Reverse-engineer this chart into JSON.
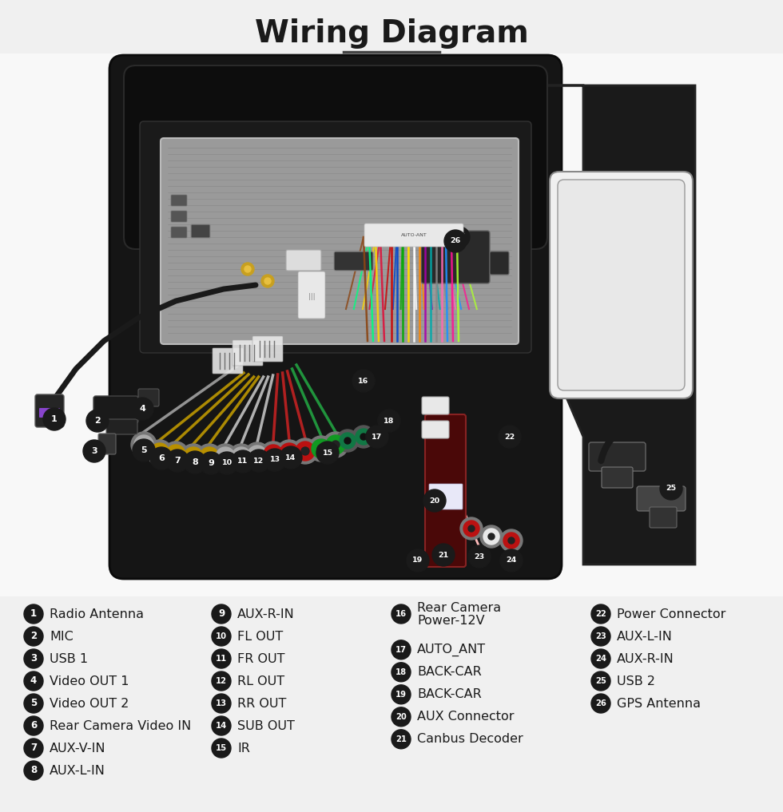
{
  "title": "Wiring Diagram",
  "title_fontsize": 28,
  "title_fontweight": "bold",
  "bg_color": "#f0f0f0",
  "text_color": "#1a1a1a",
  "circle_bg": "#1a1a1a",
  "circle_fg": "#ffffff",
  "divider_color": "#444444",
  "legend_items_col0": [
    {
      "num": "1",
      "label": "Radio Antenna"
    },
    {
      "num": "2",
      "label": "MIC"
    },
    {
      "num": "3",
      "label": "USB 1"
    },
    {
      "num": "4",
      "label": "Video OUT 1"
    },
    {
      "num": "5",
      "label": "Video OUT 2"
    },
    {
      "num": "6",
      "label": "Rear Camera Video IN"
    },
    {
      "num": "7",
      "label": "AUX-V-IN"
    },
    {
      "num": "8",
      "label": "AUX-L-IN"
    }
  ],
  "legend_items_col1": [
    {
      "num": "9",
      "label": "AUX-R-IN"
    },
    {
      "num": "10",
      "label": "FL OUT"
    },
    {
      "num": "11",
      "label": "FR OUT"
    },
    {
      "num": "12",
      "label": "RL OUT"
    },
    {
      "num": "13",
      "label": "RR OUT"
    },
    {
      "num": "14",
      "label": "SUB OUT"
    },
    {
      "num": "15",
      "label": "IR"
    }
  ],
  "legend_items_col2": [
    {
      "num": "16",
      "label": "Rear Camera\nPower-12V",
      "multiline": true
    },
    {
      "num": "17",
      "label": "AUTO_ANT"
    },
    {
      "num": "18",
      "label": "BACK-CAR"
    },
    {
      "num": "19",
      "label": "BACK-CAR"
    },
    {
      "num": "20",
      "label": "AUX Connector"
    },
    {
      "num": "21",
      "label": "Canbus Decoder"
    }
  ],
  "legend_items_col3": [
    {
      "num": "22",
      "label": "Power Connector"
    },
    {
      "num": "23",
      "label": "AUX-L-IN"
    },
    {
      "num": "24",
      "label": "AUX-R-IN"
    },
    {
      "num": "25",
      "label": "USB 2"
    },
    {
      "num": "26",
      "label": "GPS Antenna"
    }
  ]
}
